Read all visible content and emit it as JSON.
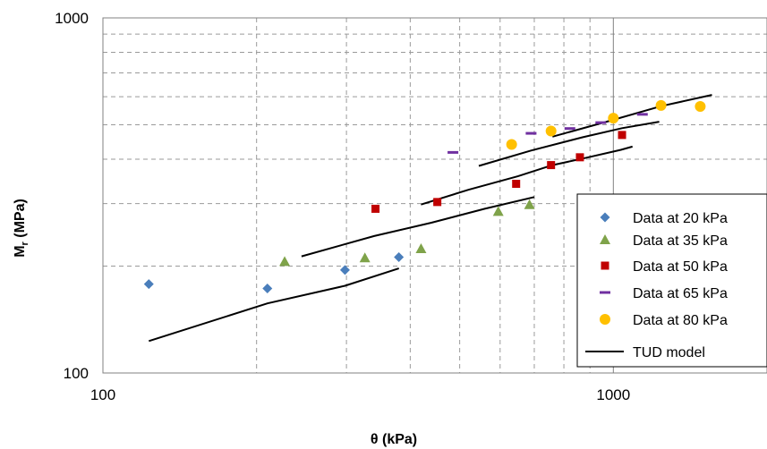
{
  "chart_data": {
    "type": "scatter",
    "title": "",
    "xlabel": "θ (kPa)",
    "ylabel_main": "M",
    "ylabel_sub": "r",
    "ylabel_unit": " (MPa)",
    "xscale": "log",
    "yscale": "log",
    "xlim": [
      100,
      2000
    ],
    "ylim": [
      100,
      1000
    ],
    "x_ticks": [
      {
        "value": 100,
        "label": "100"
      },
      {
        "value": 1000,
        "label": "1000"
      }
    ],
    "y_ticks": [
      {
        "value": 100,
        "label": "100"
      },
      {
        "value": 1000,
        "label": "1000"
      }
    ],
    "grid": true,
    "legend_position": "bottom-right",
    "series": [
      {
        "name": "Data at 20 kPa",
        "marker": "diamond",
        "color": "#4a7ebb",
        "points": [
          [
            123,
            178
          ],
          [
            210,
            173
          ],
          [
            298,
            195
          ],
          [
            380,
            212
          ]
        ]
      },
      {
        "name": "Data at 35 kPa",
        "marker": "triangle",
        "color": "#7fa34a",
        "points": [
          [
            227,
            206
          ],
          [
            326,
            211
          ],
          [
            420,
            224
          ],
          [
            595,
            285
          ],
          [
            685,
            298
          ]
        ]
      },
      {
        "name": "Data at 50 kPa",
        "marker": "square",
        "color": "#c00000",
        "points": [
          [
            342,
            290
          ],
          [
            452,
            303
          ],
          [
            645,
            341
          ],
          [
            755,
            385
          ],
          [
            860,
            405
          ],
          [
            1040,
            468
          ]
        ]
      },
      {
        "name": "Data at 65 kPa",
        "marker": "dash",
        "color": "#7030a0",
        "points": [
          [
            485,
            418
          ],
          [
            690,
            473
          ],
          [
            822,
            488
          ],
          [
            945,
            507
          ],
          [
            1140,
            535
          ]
        ]
      },
      {
        "name": "Data at 80 kPa",
        "marker": "circle",
        "color": "#ffc000",
        "points": [
          [
            632,
            440
          ],
          [
            755,
            480
          ],
          [
            1000,
            522
          ],
          [
            1240,
            567
          ],
          [
            1480,
            563
          ]
        ]
      },
      {
        "name": "TUD model",
        "marker": "line",
        "color": "#000000",
        "lines": [
          [
            [
              123,
              123
            ],
            [
              210,
              157
            ],
            [
              298,
              176
            ],
            [
              380,
              197
            ]
          ],
          [
            [
              245,
              213
            ],
            [
              340,
              243
            ],
            [
              440,
              265
            ],
            [
              560,
              290
            ],
            [
              700,
              313
            ]
          ],
          [
            [
              420,
              298
            ],
            [
              520,
              328
            ],
            [
              650,
              358
            ],
            [
              760,
              385
            ],
            [
              880,
              403
            ],
            [
              1035,
              425
            ],
            [
              1090,
              434
            ]
          ],
          [
            [
              545,
              383
            ],
            [
              690,
              423
            ],
            [
              870,
              461
            ],
            [
              1040,
              489
            ],
            [
              1230,
              510
            ]
          ],
          [
            [
              760,
              463
            ],
            [
              980,
              512
            ],
            [
              1240,
              564
            ],
            [
              1560,
              607
            ]
          ]
        ]
      }
    ]
  }
}
